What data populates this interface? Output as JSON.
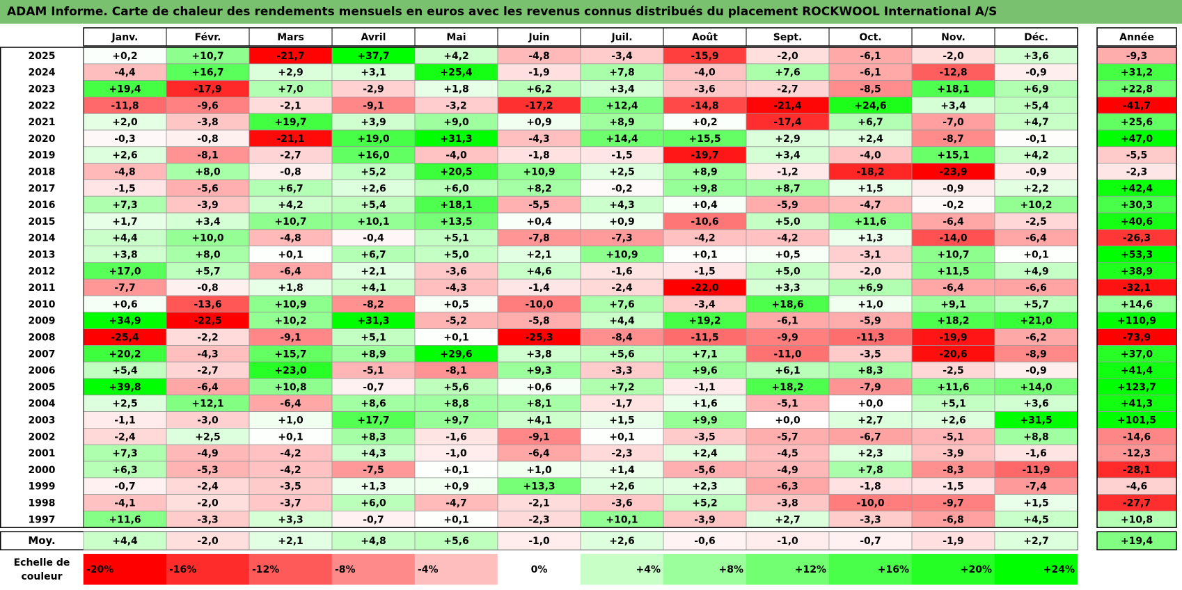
{
  "title": "ADAM Informe. Carte de chaleur des rendements mensuels en euros avec les revenus connus distribués du placement ROCKWOOL International A/S",
  "chart_data": {
    "type": "heatmap",
    "title": "ADAM Informe. Carte de chaleur des rendements mensuels en euros avec les revenus connus distribués du placement ROCKWOOL International A/S",
    "months": [
      "Janv.",
      "Févr.",
      "Mars",
      "Avril",
      "Mai",
      "Juin",
      "Juil.",
      "Août",
      "Sept.",
      "Oct.",
      "Nov.",
      "Déc."
    ],
    "year_header": "Année",
    "rows": [
      {
        "year": "2025",
        "values": [
          0.2,
          10.7,
          -21.7,
          37.7,
          4.2,
          -4.8,
          -3.4,
          -15.9,
          -2.0,
          -6.1,
          -2.0,
          3.6
        ],
        "annual": -9.3
      },
      {
        "year": "2024",
        "values": [
          -4.4,
          16.7,
          2.9,
          3.1,
          25.4,
          -1.9,
          7.8,
          -4.0,
          7.6,
          -6.1,
          -12.8,
          -0.9
        ],
        "annual": 31.2
      },
      {
        "year": "2023",
        "values": [
          19.4,
          -17.9,
          7.0,
          -2.9,
          1.8,
          6.2,
          3.4,
          -3.6,
          -2.7,
          -8.5,
          18.1,
          6.9
        ],
        "annual": 22.8
      },
      {
        "year": "2022",
        "values": [
          -11.8,
          -9.6,
          -2.1,
          -9.1,
          -3.2,
          -17.2,
          12.4,
          -14.8,
          -21.4,
          24.6,
          3.4,
          5.4
        ],
        "annual": -41.7
      },
      {
        "year": "2021",
        "values": [
          2.0,
          -3.8,
          19.7,
          3.9,
          9.0,
          0.9,
          8.9,
          0.2,
          -17.4,
          6.7,
          -7.0,
          4.7
        ],
        "annual": 25.6
      },
      {
        "year": "2020",
        "values": [
          -0.3,
          -0.8,
          -21.1,
          19.0,
          31.3,
          -4.3,
          14.4,
          15.5,
          2.9,
          2.4,
          -8.7,
          -0.1
        ],
        "annual": 47.0
      },
      {
        "year": "2019",
        "values": [
          2.6,
          -8.1,
          -2.7,
          16.0,
          -4.0,
          -1.8,
          -1.5,
          -19.7,
          3.4,
          -4.0,
          15.1,
          4.2
        ],
        "annual": -5.5
      },
      {
        "year": "2018",
        "values": [
          -4.8,
          8.0,
          -0.8,
          5.2,
          20.5,
          10.9,
          2.5,
          8.9,
          -1.2,
          -18.2,
          -23.9,
          -0.9
        ],
        "annual": -2.3
      },
      {
        "year": "2017",
        "values": [
          -1.5,
          -5.6,
          6.7,
          2.6,
          6.0,
          8.2,
          -0.2,
          9.8,
          8.7,
          1.5,
          -0.9,
          2.2
        ],
        "annual": 42.4
      },
      {
        "year": "2016",
        "values": [
          7.3,
          -3.9,
          4.2,
          5.4,
          18.1,
          -5.5,
          4.3,
          0.4,
          -5.9,
          -4.7,
          -0.2,
          10.2
        ],
        "annual": 30.3
      },
      {
        "year": "2015",
        "values": [
          1.7,
          3.4,
          10.7,
          10.1,
          13.5,
          0.4,
          0.9,
          -10.6,
          5.0,
          11.6,
          -6.4,
          -2.5
        ],
        "annual": 40.6
      },
      {
        "year": "2014",
        "values": [
          4.4,
          10.0,
          -4.8,
          -0.4,
          5.1,
          -7.8,
          -7.3,
          -4.2,
          -4.2,
          1.3,
          -14.0,
          -6.4
        ],
        "annual": -26.3
      },
      {
        "year": "2013",
        "values": [
          3.8,
          8.0,
          0.1,
          6.7,
          5.0,
          2.1,
          10.9,
          0.1,
          0.5,
          -3.1,
          10.7,
          0.1
        ],
        "annual": 53.3
      },
      {
        "year": "2012",
        "values": [
          17.0,
          5.7,
          -6.4,
          2.1,
          -3.6,
          4.6,
          -1.6,
          -1.5,
          5.0,
          -2.0,
          11.5,
          4.9
        ],
        "annual": 38.9
      },
      {
        "year": "2011",
        "values": [
          -7.7,
          -0.8,
          1.8,
          4.1,
          -4.3,
          -1.4,
          -2.4,
          -22.0,
          3.3,
          6.9,
          -6.4,
          -6.6
        ],
        "annual": -32.1
      },
      {
        "year": "2010",
        "values": [
          0.6,
          -13.6,
          10.9,
          -8.2,
          0.5,
          -10.0,
          7.6,
          -3.4,
          18.6,
          1.0,
          9.1,
          5.7
        ],
        "annual": 14.6
      },
      {
        "year": "2009",
        "values": [
          34.9,
          -22.5,
          10.2,
          31.3,
          -5.2,
          -5.8,
          4.4,
          19.2,
          -6.1,
          -5.9,
          18.2,
          21.0
        ],
        "annual": 110.9
      },
      {
        "year": "2008",
        "values": [
          -25.4,
          -2.2,
          -9.1,
          5.1,
          0.1,
          -25.3,
          -8.4,
          -11.5,
          -9.9,
          -11.3,
          -19.9,
          -6.2
        ],
        "annual": -73.9
      },
      {
        "year": "2007",
        "values": [
          20.2,
          -4.3,
          15.7,
          8.9,
          29.6,
          3.8,
          5.6,
          7.1,
          -11.0,
          -3.5,
          -20.6,
          -8.9
        ],
        "annual": 37.0
      },
      {
        "year": "2006",
        "values": [
          5.4,
          -2.7,
          23.0,
          -5.1,
          -8.1,
          9.3,
          -3.3,
          9.6,
          6.1,
          8.3,
          -2.5,
          -0.9
        ],
        "annual": 41.4
      },
      {
        "year": "2005",
        "values": [
          39.8,
          -6.4,
          10.8,
          -0.7,
          5.6,
          0.6,
          7.2,
          -1.1,
          18.2,
          -7.9,
          11.6,
          14.0
        ],
        "annual": 123.7
      },
      {
        "year": "2004",
        "values": [
          2.5,
          12.1,
          -6.4,
          8.6,
          8.8,
          8.1,
          -1.7,
          1.6,
          -5.1,
          0.0,
          5.1,
          3.6
        ],
        "annual": 41.3
      },
      {
        "year": "2003",
        "values": [
          -1.1,
          -3.0,
          1.0,
          17.7,
          9.7,
          4.1,
          1.5,
          9.9,
          0.0,
          2.7,
          2.6,
          31.5
        ],
        "annual": 101.5
      },
      {
        "year": "2002",
        "values": [
          -2.4,
          2.5,
          0.1,
          8.3,
          -1.6,
          -9.1,
          0.1,
          -3.5,
          -5.7,
          -6.7,
          -5.1,
          8.8
        ],
        "annual": -14.6
      },
      {
        "year": "2001",
        "values": [
          7.3,
          -4.9,
          -4.2,
          4.3,
          -1.0,
          -6.4,
          -2.3,
          2.4,
          -4.5,
          2.3,
          -3.9,
          -1.6
        ],
        "annual": -12.3
      },
      {
        "year": "2000",
        "values": [
          6.3,
          -5.3,
          -4.2,
          -7.5,
          0.1,
          1.0,
          1.4,
          -5.6,
          -4.9,
          7.8,
          -8.3,
          -11.9
        ],
        "annual": -28.1
      },
      {
        "year": "1999",
        "values": [
          -0.7,
          -2.4,
          -3.5,
          1.3,
          0.9,
          13.3,
          2.6,
          2.3,
          -6.3,
          -1.8,
          -1.5,
          -7.4
        ],
        "annual": -4.6
      },
      {
        "year": "1998",
        "values": [
          -4.1,
          -2.0,
          -3.7,
          6.0,
          -4.7,
          -2.1,
          -3.6,
          5.2,
          -3.8,
          -10.0,
          -9.7,
          1.5
        ],
        "annual": -27.7
      },
      {
        "year": "1997",
        "values": [
          11.6,
          -3.3,
          3.3,
          -0.7,
          0.1,
          -2.3,
          10.1,
          -3.9,
          2.7,
          -3.3,
          -6.8,
          4.5
        ],
        "annual": 10.8
      }
    ],
    "average": {
      "label": "Moy.",
      "values": [
        4.4,
        -2.0,
        2.1,
        4.8,
        5.6,
        -1.0,
        2.6,
        -0.6,
        -1.0,
        -0.7,
        -1.9,
        2.7
      ],
      "annual": 19.4
    },
    "scale": {
      "label_line1": "Echelle de",
      "label_line2": "couleur",
      "labels": [
        "-20%",
        "-16%",
        "-12%",
        "-8%",
        "-4%",
        "0%",
        "+4%",
        "+8%",
        "+12%",
        "+16%",
        "+20%",
        "+24%"
      ],
      "values": [
        -20,
        -16,
        -12,
        -8,
        -4,
        0,
        4,
        8,
        12,
        16,
        20,
        24
      ]
    },
    "colors": {
      "negative": "#ff0000",
      "positive": "#00ff00",
      "neutral": "#ffffff",
      "title_bar": "#7ac16f"
    }
  }
}
